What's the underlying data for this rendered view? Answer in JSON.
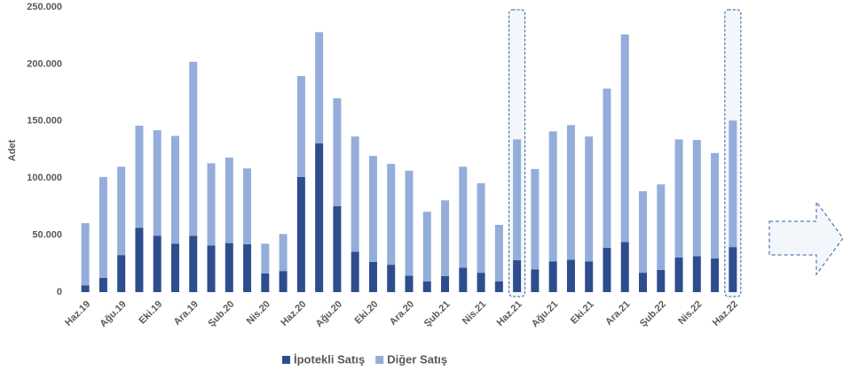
{
  "chart_data": {
    "type": "bar",
    "stacked": true,
    "ylabel": "Adet",
    "categories": [
      "Haz.19",
      null,
      "Ağu.19",
      null,
      "Eki.19",
      null,
      "Ara.19",
      null,
      "Şub.20",
      null,
      "Nis.20",
      null,
      "Haz.20",
      null,
      "Ağu.20",
      null,
      "Eki.20",
      null,
      "Ara.20",
      null,
      "Şub.21",
      null,
      "Nis.21",
      null,
      "Haz.21",
      null,
      "Ağu.21",
      null,
      "Eki.21",
      null,
      "Ara.21",
      null,
      "Şub.22",
      null,
      "Nis.22",
      null,
      "Haz.22"
    ],
    "series": [
      {
        "name": "İpotekli Satış",
        "color": "#2E4D8E",
        "values": [
          6000,
          12500,
          32500,
          56500,
          49500,
          42500,
          49500,
          41000,
          43000,
          42000,
          16500,
          18500,
          101000,
          130500,
          75500,
          35500,
          26500,
          24000,
          14500,
          9500,
          14000,
          21500,
          17000,
          9500,
          28000,
          20000,
          27000,
          28500,
          27000,
          39000,
          44000,
          17000,
          19500,
          30500,
          31500,
          29500,
          39500
        ]
      },
      {
        "name": "Diğer Satış",
        "color": "#95ADDB",
        "values": [
          54500,
          88500,
          77500,
          89500,
          92500,
          94500,
          152500,
          72000,
          75000,
          66500,
          26000,
          32500,
          88500,
          97500,
          94500,
          101000,
          93000,
          88500,
          92000,
          61000,
          66500,
          88500,
          78500,
          49500,
          106000,
          88000,
          114000,
          118000,
          109500,
          139500,
          182000,
          71500,
          75000,
          103500,
          102000,
          92500,
          111000
        ]
      }
    ],
    "ylim": [
      0,
      250000
    ],
    "yticks": [
      0,
      {
        "value": 50000,
        "label": "50.000"
      },
      {
        "value": 100000,
        "label": "100.000"
      },
      {
        "value": 150000,
        "label": "150.000"
      },
      {
        "value": 200000,
        "label": "200.000"
      },
      {
        "value": 250000,
        "label": "250.000"
      }
    ],
    "grid": false,
    "legend": "bottom"
  }
}
